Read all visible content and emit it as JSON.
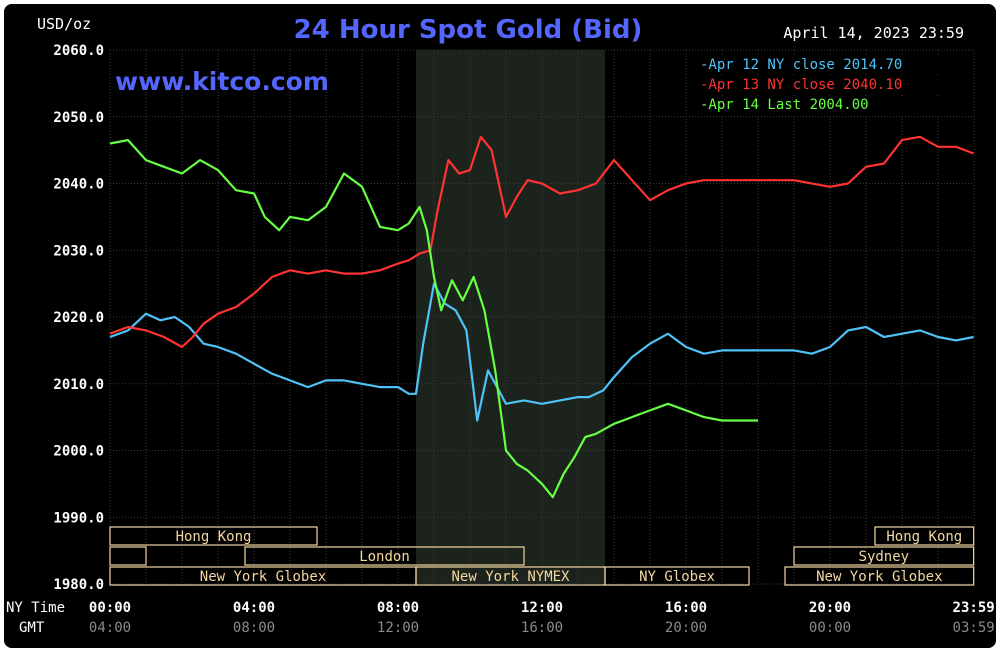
{
  "header": {
    "unit_label": "USD/oz",
    "title": "24 Hour Spot Gold (Bid)",
    "timestamp": "April 14, 2023 23:59",
    "watermark": "www.kitco.com"
  },
  "colors": {
    "background": "#000000",
    "grid": "#3a3a3a",
    "axis_text": "#ffffff",
    "gmt_text": "#8a8a8a",
    "title": "#5566ff",
    "watermark": "#5566ff",
    "highlight_band": "#1c221c",
    "market_box": "#f2d7a0",
    "market_box_stroke": "#6a6040",
    "market_text": "#111111",
    "apr12": "#4fc3f7",
    "apr13": "#ff3333",
    "apr14": "#66ff44"
  },
  "legend": [
    {
      "label": "Apr 12 NY close 2014.70",
      "color": "#4fc3f7"
    },
    {
      "label": "Apr 13 NY close 2040.10",
      "color": "#ff3333"
    },
    {
      "label": "Apr 14 Last 2004.00",
      "color": "#66ff44"
    }
  ],
  "axes": {
    "ny_time_label": "NY Time",
    "gmt_label": "GMT",
    "ny_ticks": [
      "00:00",
      "04:00",
      "08:00",
      "12:00",
      "16:00",
      "20:00",
      "23:59"
    ],
    "gmt_ticks": [
      "04:00",
      "08:00",
      "12:00",
      "16:00",
      "20:00",
      "00:00",
      "03:59"
    ],
    "y_ticks": [
      "1980.0",
      "1990.0",
      "2000.0",
      "2010.0",
      "2020.0",
      "2030.0",
      "2040.0",
      "2050.0",
      "2060.0"
    ]
  },
  "markets": [
    {
      "label": "Hong Kong",
      "start": 0.0,
      "end": 5.75,
      "row": 0
    },
    {
      "label": "Hong Kong",
      "start": 21.25,
      "end": 23.99,
      "row": 0
    },
    {
      "label": "",
      "start": 0.0,
      "end": 1.0,
      "row": 1
    },
    {
      "label": "London",
      "start": 3.75,
      "end": 11.5,
      "row": 1
    },
    {
      "label": "Sydney",
      "start": 19.0,
      "end": 23.99,
      "row": 1
    },
    {
      "label": "New York Globex",
      "start": 0.0,
      "end": 8.5,
      "row": 2
    },
    {
      "label": "New York NYMEX",
      "start": 8.5,
      "end": 13.75,
      "row": 2
    },
    {
      "label": "NY Globex",
      "start": 13.75,
      "end": 17.75,
      "row": 2
    },
    {
      "label": "New York Globex",
      "start": 18.75,
      "end": 23.99,
      "row": 2
    }
  ],
  "chart_data": {
    "type": "line",
    "title": "24 Hour Spot Gold (Bid)",
    "ylabel": "USD/oz",
    "xlabel": "NY Time",
    "ylim": [
      1980,
      2060
    ],
    "xlim": [
      0,
      24
    ],
    "grid": true,
    "legend_position": "top-right",
    "highlight_range_hours": [
      8.5,
      13.75
    ],
    "series": [
      {
        "name": "Apr 12 NY close 2014.70",
        "color": "#4fc3f7",
        "x": [
          0,
          0.5,
          1.0,
          1.4,
          1.8,
          2.2,
          2.6,
          3.0,
          3.5,
          4.0,
          4.5,
          5.0,
          5.5,
          6.0,
          6.5,
          7.0,
          7.5,
          8.0,
          8.3,
          8.5,
          8.7,
          9.0,
          9.3,
          9.6,
          9.9,
          10.2,
          10.5,
          10.8,
          11.0,
          11.5,
          12.0,
          12.5,
          13.0,
          13.3,
          13.7,
          14.0,
          14.5,
          15.0,
          15.5,
          16.0,
          16.5,
          17.0,
          18.0,
          19.0,
          19.5,
          20.0,
          20.5,
          21.0,
          21.5,
          22.0,
          22.5,
          23.0,
          23.5,
          23.99
        ],
        "y": [
          2017,
          2018,
          2020.5,
          2019.5,
          2020,
          2018.5,
          2016,
          2015.5,
          2014.5,
          2013,
          2011.5,
          2010.5,
          2009.5,
          2010.5,
          2010.5,
          2010,
          2009.5,
          2009.5,
          2008.5,
          2008.5,
          2016,
          2025,
          2022,
          2021,
          2018,
          2004.5,
          2012,
          2009,
          2007,
          2007.5,
          2007,
          2007.5,
          2008,
          2008,
          2009,
          2011,
          2014,
          2016,
          2017.5,
          2015.5,
          2014.5,
          2015,
          2015,
          2015,
          2014.5,
          2015.5,
          2018,
          2018.5,
          2017,
          2017.5,
          2018,
          2017,
          2016.5,
          2017
        ]
      },
      {
        "name": "Apr 13 NY close 2040.10",
        "color": "#ff3333",
        "x": [
          0,
          0.5,
          1.0,
          1.5,
          2.0,
          2.3,
          2.6,
          3.0,
          3.5,
          4.0,
          4.5,
          5.0,
          5.5,
          6.0,
          6.5,
          7.0,
          7.5,
          8.0,
          8.3,
          8.6,
          8.9,
          9.1,
          9.4,
          9.7,
          10.0,
          10.3,
          10.6,
          11.0,
          11.3,
          11.6,
          12.0,
          12.5,
          13.0,
          13.5,
          14.0,
          14.5,
          15.0,
          15.5,
          16.0,
          16.5,
          17.0,
          18.0,
          19.0,
          20.0,
          20.5,
          21.0,
          21.5,
          22.0,
          22.5,
          23.0,
          23.5,
          23.99
        ],
        "y": [
          2017.5,
          2018.5,
          2018,
          2017,
          2015.5,
          2017,
          2019,
          2020.5,
          2021.5,
          2023.5,
          2026,
          2027,
          2026.5,
          2027,
          2026.5,
          2026.5,
          2027,
          2028,
          2028.5,
          2029.5,
          2030,
          2036,
          2043.5,
          2041.5,
          2042,
          2047,
          2045,
          2035,
          2038,
          2040.5,
          2040,
          2038.5,
          2039,
          2040,
          2043.5,
          2040.5,
          2037.5,
          2039,
          2040,
          2040.5,
          2040.5,
          2040.5,
          2040.5,
          2039.5,
          2040,
          2042.5,
          2043,
          2046.5,
          2047,
          2045.5,
          2045.5,
          2044.5
        ]
      },
      {
        "name": "Apr 14 Last 2004.00",
        "color": "#66ff44",
        "x": [
          0,
          0.5,
          1.0,
          1.5,
          2.0,
          2.5,
          3.0,
          3.5,
          4.0,
          4.3,
          4.7,
          5.0,
          5.5,
          6.0,
          6.5,
          7.0,
          7.5,
          8.0,
          8.3,
          8.6,
          8.8,
          9.0,
          9.2,
          9.5,
          9.8,
          10.1,
          10.4,
          10.7,
          11.0,
          11.3,
          11.6,
          12.0,
          12.3,
          12.6,
          12.9,
          13.2,
          13.5,
          14.0,
          14.5,
          15.0,
          15.5,
          16.0,
          16.5,
          17.0,
          17.5,
          18.0
        ],
        "y": [
          2046,
          2046.5,
          2043.5,
          2042.5,
          2041.5,
          2043.5,
          2042,
          2039,
          2038.5,
          2035,
          2033,
          2035,
          2034.5,
          2036.5,
          2041.5,
          2039.5,
          2033.5,
          2033,
          2034,
          2036.5,
          2033,
          2026,
          2021,
          2025.5,
          2022.5,
          2026,
          2021,
          2012,
          2000,
          1998,
          1997,
          1995,
          1993,
          1996.5,
          1999,
          2002,
          2002.5,
          2004,
          2005,
          2006,
          2007,
          2006,
          2005,
          2004.5,
          2004.5,
          2004.5
        ]
      }
    ]
  }
}
